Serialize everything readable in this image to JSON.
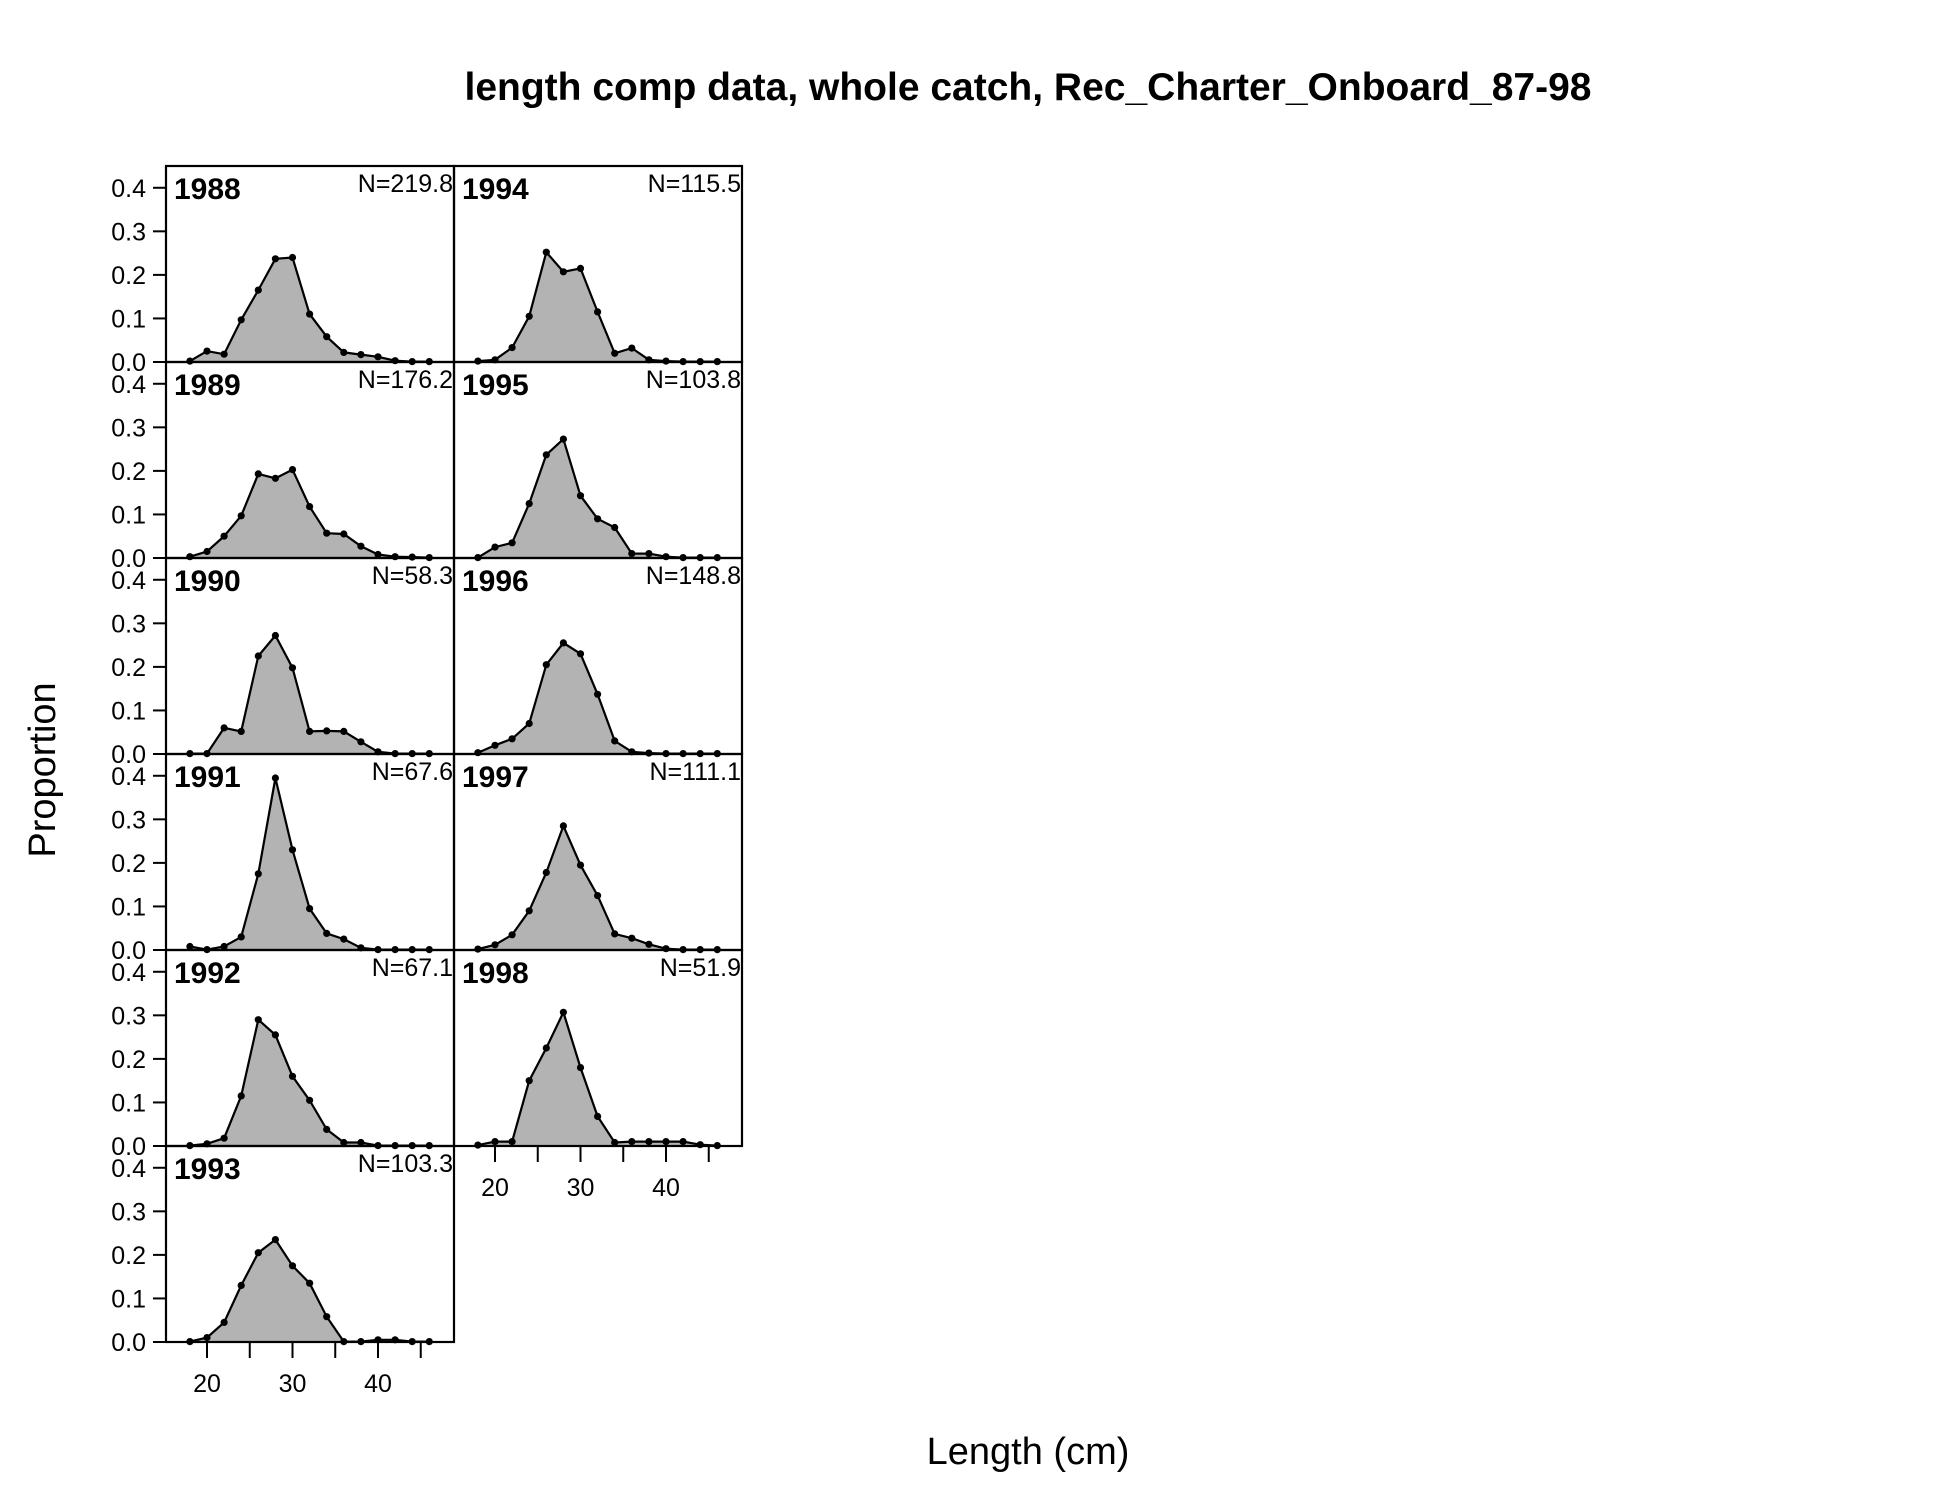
{
  "chart_data": {
    "type": "area",
    "title": "length comp data, whole catch, Rec_Charter_Onboard_87-98",
    "xlabel": "Length (cm)",
    "ylabel": "Proportion",
    "x_ticks": [
      20,
      30,
      40
    ],
    "y_ticks": [
      "0.0",
      "0.1",
      "0.2",
      "0.3",
      "0.4"
    ],
    "ylim": [
      0,
      0.45
    ],
    "xlim": [
      15,
      47
    ],
    "fill_color": "#b3b3b3",
    "line_color": "#000000",
    "x": [
      18,
      20,
      22,
      24,
      26,
      28,
      30,
      32,
      34,
      36,
      38,
      40,
      42,
      44,
      46
    ],
    "panels": [
      {
        "year": "1988",
        "n_label": "N=219.8",
        "values": [
          0.002,
          0.025,
          0.018,
          0.097,
          0.165,
          0.237,
          0.24,
          0.11,
          0.058,
          0.022,
          0.017,
          0.012,
          0.003,
          0.001,
          0.001
        ]
      },
      {
        "year": "1989",
        "n_label": "N=176.2",
        "values": [
          0.003,
          0.015,
          0.05,
          0.097,
          0.193,
          0.183,
          0.203,
          0.118,
          0.057,
          0.055,
          0.027,
          0.008,
          0.003,
          0.002,
          0.001
        ]
      },
      {
        "year": "1990",
        "n_label": "N=58.3",
        "values": [
          0.001,
          0.001,
          0.06,
          0.052,
          0.225,
          0.272,
          0.198,
          0.052,
          0.053,
          0.052,
          0.028,
          0.005,
          0.001,
          0.001,
          0.001
        ]
      },
      {
        "year": "1991",
        "n_label": "N=67.6",
        "values": [
          0.008,
          0.001,
          0.008,
          0.03,
          0.175,
          0.395,
          0.23,
          0.095,
          0.038,
          0.025,
          0.005,
          0.001,
          0.001,
          0.001,
          0.001
        ]
      },
      {
        "year": "1992",
        "n_label": "N=67.1",
        "values": [
          0.001,
          0.005,
          0.018,
          0.115,
          0.29,
          0.255,
          0.16,
          0.105,
          0.038,
          0.008,
          0.008,
          0.001,
          0.001,
          0.001,
          0.001
        ]
      },
      {
        "year": "1993",
        "n_label": "N=103.3",
        "values": [
          0.001,
          0.01,
          0.045,
          0.13,
          0.205,
          0.235,
          0.175,
          0.135,
          0.058,
          0.001,
          0.001,
          0.005,
          0.005,
          0.001,
          0.001
        ]
      },
      {
        "year": "1994",
        "n_label": "N=115.5",
        "values": [
          0.002,
          0.005,
          0.033,
          0.105,
          0.252,
          0.207,
          0.215,
          0.115,
          0.02,
          0.032,
          0.005,
          0.002,
          0.001,
          0.001,
          0.001
        ]
      },
      {
        "year": "1995",
        "n_label": "N=103.8",
        "values": [
          0.001,
          0.025,
          0.035,
          0.125,
          0.237,
          0.273,
          0.143,
          0.09,
          0.07,
          0.01,
          0.01,
          0.003,
          0.001,
          0.001,
          0.001
        ]
      },
      {
        "year": "1996",
        "n_label": "N=148.8",
        "values": [
          0.003,
          0.02,
          0.035,
          0.07,
          0.205,
          0.255,
          0.23,
          0.137,
          0.03,
          0.005,
          0.002,
          0.001,
          0.001,
          0.001,
          0.001
        ]
      },
      {
        "year": "1997",
        "n_label": "N=111.1",
        "values": [
          0.002,
          0.012,
          0.035,
          0.09,
          0.178,
          0.285,
          0.195,
          0.125,
          0.037,
          0.027,
          0.013,
          0.003,
          0.001,
          0.001,
          0.001
        ]
      },
      {
        "year": "1998",
        "n_label": "N=51.9",
        "values": [
          0.002,
          0.01,
          0.01,
          0.15,
          0.225,
          0.307,
          0.18,
          0.068,
          0.008,
          0.01,
          0.01,
          0.01,
          0.01,
          0.003,
          0.001
        ]
      }
    ],
    "legend": "none",
    "grid": false
  }
}
